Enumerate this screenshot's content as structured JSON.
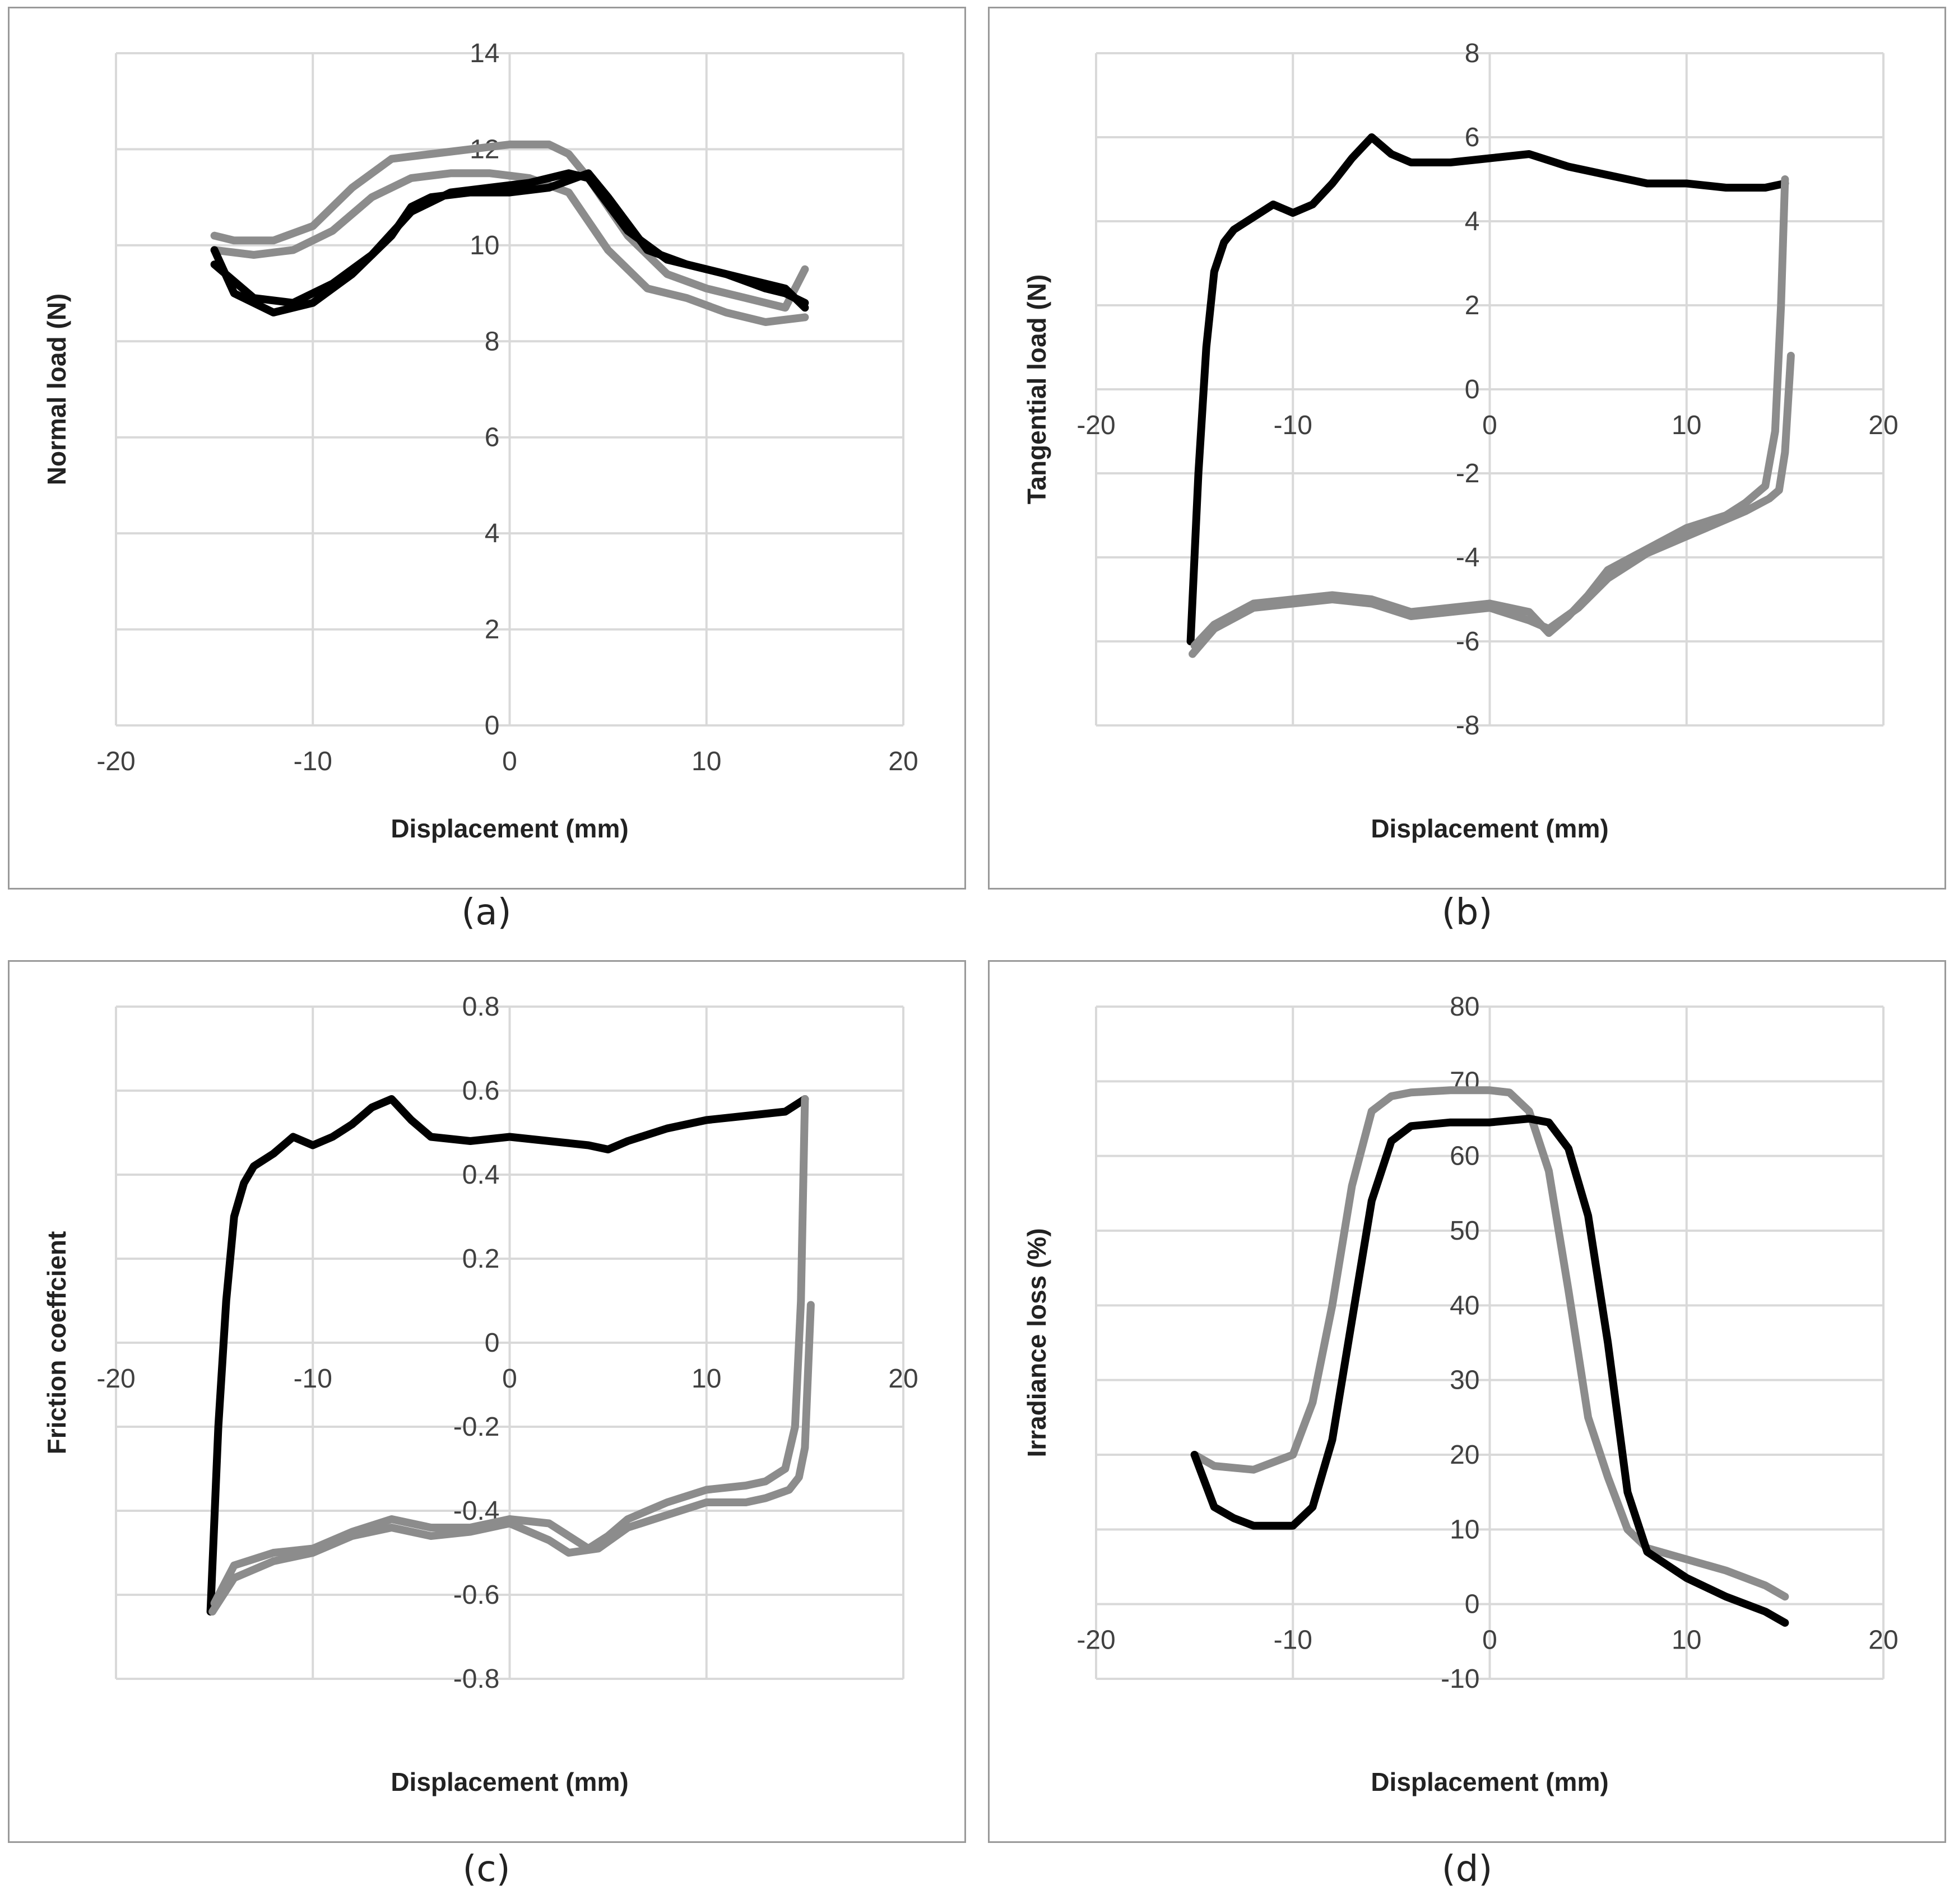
{
  "colors": {
    "grid": "#d9d9d9",
    "axis": "#d9d9d9",
    "black_series": "#000000",
    "gray_series": "#8c8c8c",
    "border": "#9a9a9a"
  },
  "chart_data": [
    {
      "id": "a",
      "caption": "(a)",
      "type": "line",
      "xlabel": "Displacement (mm)",
      "ylabel": "Normal load (N)",
      "xlim": [
        -20,
        20
      ],
      "ylim": [
        0,
        14
      ],
      "xticks": [
        -20,
        -10,
        0,
        10,
        20
      ],
      "yticks": [
        0,
        2,
        4,
        6,
        8,
        10,
        12,
        14
      ],
      "grid": true,
      "series": [
        {
          "name": "gray-1",
          "color": "gray",
          "x": [
            -15,
            -14,
            -12,
            -10,
            -8,
            -6,
            -4,
            -2,
            0,
            2,
            3,
            4,
            6,
            8,
            10,
            12,
            13,
            14,
            15
          ],
          "y": [
            10.2,
            10.1,
            10.1,
            10.4,
            11.2,
            11.8,
            11.9,
            12.0,
            12.1,
            12.1,
            11.9,
            11.4,
            10.2,
            9.4,
            9.1,
            8.9,
            8.8,
            8.7,
            9.5
          ]
        },
        {
          "name": "gray-2",
          "color": "gray",
          "x": [
            -15,
            -13,
            -11,
            -9,
            -7,
            -5,
            -3,
            -1,
            1,
            3,
            5,
            7,
            9,
            11,
            13,
            15
          ],
          "y": [
            9.9,
            9.8,
            9.9,
            10.3,
            11.0,
            11.4,
            11.5,
            11.5,
            11.4,
            11.1,
            9.9,
            9.1,
            8.9,
            8.6,
            8.4,
            8.5
          ]
        },
        {
          "name": "black-1",
          "color": "black",
          "x": [
            -15,
            -14,
            -12,
            -10,
            -8,
            -6,
            -5,
            -4,
            -2,
            0,
            2,
            4,
            5,
            7,
            9,
            11,
            13,
            14,
            15
          ],
          "y": [
            9.9,
            9.0,
            8.6,
            8.8,
            9.4,
            10.2,
            10.8,
            11.0,
            11.1,
            11.1,
            11.2,
            11.5,
            11.0,
            9.9,
            9.6,
            9.4,
            9.1,
            9.0,
            8.8
          ]
        },
        {
          "name": "black-2",
          "color": "black",
          "x": [
            -15,
            -13,
            -11,
            -9,
            -7,
            -5,
            -3,
            -1,
            1,
            3,
            4,
            6,
            8,
            10,
            12,
            14,
            15
          ],
          "y": [
            9.6,
            8.9,
            8.8,
            9.2,
            9.8,
            10.7,
            11.1,
            11.2,
            11.3,
            11.5,
            11.4,
            10.3,
            9.7,
            9.5,
            9.3,
            9.1,
            8.7
          ]
        }
      ]
    },
    {
      "id": "b",
      "caption": "(b)",
      "type": "line",
      "xlabel": "Displacement (mm)",
      "ylabel": "Tangential load (N)",
      "xlim": [
        -20,
        20
      ],
      "ylim": [
        -8,
        8
      ],
      "xticks": [
        -20,
        -10,
        0,
        10,
        20
      ],
      "yticks": [
        -8,
        -6,
        -4,
        -2,
        0,
        2,
        4,
        6,
        8
      ],
      "grid": true,
      "series": [
        {
          "name": "black-forward",
          "color": "black",
          "x": [
            -15.2,
            -14.8,
            -14.4,
            -14,
            -13.5,
            -13,
            -12,
            -11,
            -10,
            -9,
            -8,
            -7,
            -6,
            -5,
            -4,
            -2,
            0,
            2,
            4,
            6,
            8,
            10,
            12,
            14,
            15
          ],
          "y": [
            -6.0,
            -2.0,
            1.0,
            2.8,
            3.5,
            3.8,
            4.1,
            4.4,
            4.2,
            4.4,
            4.9,
            5.5,
            6.0,
            5.6,
            5.4,
            5.4,
            5.5,
            5.6,
            5.3,
            5.1,
            4.9,
            4.9,
            4.8,
            4.8,
            4.9
          ]
        },
        {
          "name": "gray-return-1",
          "color": "gray",
          "x": [
            15,
            14.8,
            14.5,
            14,
            13,
            12,
            10,
            8,
            6,
            5,
            4,
            3,
            2,
            0,
            -2,
            -4,
            -6,
            -8,
            -10,
            -12,
            -14,
            -15
          ],
          "y": [
            5.0,
            2.0,
            -1.0,
            -2.3,
            -2.7,
            -3.0,
            -3.3,
            -3.8,
            -4.3,
            -4.9,
            -5.4,
            -5.8,
            -5.3,
            -5.1,
            -5.2,
            -5.3,
            -5.0,
            -4.9,
            -5.0,
            -5.1,
            -5.6,
            -6.1
          ]
        },
        {
          "name": "gray-return-2",
          "color": "gray",
          "x": [
            15.3,
            15.0,
            14.7,
            14.2,
            13,
            12,
            10,
            8,
            6,
            4.5,
            3,
            2,
            0,
            -2,
            -4,
            -6,
            -8,
            -10,
            -12,
            -14,
            -15.1
          ],
          "y": [
            0.8,
            -1.5,
            -2.4,
            -2.6,
            -2.9,
            -3.1,
            -3.5,
            -3.9,
            -4.5,
            -5.2,
            -5.7,
            -5.5,
            -5.2,
            -5.3,
            -5.4,
            -5.1,
            -5.0,
            -5.1,
            -5.2,
            -5.7,
            -6.3
          ]
        }
      ]
    },
    {
      "id": "c",
      "caption": "(c)",
      "type": "line",
      "xlabel": "Displacement (mm)",
      "ylabel": "Friction coeffcient",
      "xlim": [
        -20,
        20
      ],
      "ylim": [
        -0.8,
        0.8
      ],
      "xticks": [
        -20,
        -10,
        0,
        10,
        20
      ],
      "yticks": [
        -0.8,
        -0.6,
        -0.4,
        -0.2,
        0,
        0.2,
        0.4,
        0.6,
        0.8
      ],
      "grid": true,
      "series": [
        {
          "name": "black-forward",
          "color": "black",
          "x": [
            -15.2,
            -14.8,
            -14.4,
            -14,
            -13.5,
            -13,
            -12,
            -11,
            -10,
            -9,
            -8,
            -7,
            -6,
            -5,
            -4,
            -2,
            0,
            2,
            4,
            5,
            6,
            8,
            10,
            12,
            14,
            15
          ],
          "y": [
            -0.64,
            -0.2,
            0.1,
            0.3,
            0.38,
            0.42,
            0.45,
            0.49,
            0.47,
            0.49,
            0.52,
            0.56,
            0.58,
            0.53,
            0.49,
            0.48,
            0.49,
            0.48,
            0.47,
            0.46,
            0.48,
            0.51,
            0.53,
            0.54,
            0.55,
            0.58
          ]
        },
        {
          "name": "gray-return-1",
          "color": "gray",
          "x": [
            15,
            14.8,
            14.5,
            14,
            13,
            12,
            10,
            8,
            6,
            5,
            4,
            3,
            2,
            0,
            -2,
            -4,
            -6,
            -8,
            -10,
            -12,
            -14,
            -15
          ],
          "y": [
            0.58,
            0.1,
            -0.2,
            -0.3,
            -0.33,
            -0.34,
            -0.35,
            -0.38,
            -0.42,
            -0.46,
            -0.49,
            -0.46,
            -0.43,
            -0.42,
            -0.44,
            -0.44,
            -0.42,
            -0.45,
            -0.49,
            -0.5,
            -0.53,
            -0.62
          ]
        },
        {
          "name": "gray-return-2",
          "color": "gray",
          "x": [
            15.3,
            15.0,
            14.7,
            14.2,
            13,
            12,
            10,
            8,
            6,
            4.5,
            3,
            2,
            0,
            -2,
            -4,
            -6,
            -8,
            -10,
            -12,
            -14,
            -15.1
          ],
          "y": [
            0.09,
            -0.25,
            -0.32,
            -0.35,
            -0.37,
            -0.38,
            -0.38,
            -0.41,
            -0.44,
            -0.49,
            -0.5,
            -0.47,
            -0.43,
            -0.45,
            -0.46,
            -0.44,
            -0.46,
            -0.5,
            -0.52,
            -0.56,
            -0.64
          ]
        }
      ]
    },
    {
      "id": "d",
      "caption": "(d)",
      "type": "line",
      "xlabel": "Displacement (mm)",
      "ylabel": "Irradiance loss (%)",
      "xlim": [
        -20,
        20
      ],
      "ylim": [
        -10,
        80
      ],
      "xticks": [
        -20,
        -10,
        0,
        10,
        20
      ],
      "yticks": [
        -10,
        0,
        10,
        20,
        30,
        40,
        50,
        60,
        70,
        80
      ],
      "grid": true,
      "series": [
        {
          "name": "gray",
          "color": "gray",
          "x": [
            -15,
            -14,
            -12,
            -10,
            -9,
            -8,
            -7,
            -6,
            -5,
            -4,
            -2,
            0,
            1,
            2,
            3,
            4,
            5,
            6,
            7,
            8,
            10,
            12,
            14,
            15
          ],
          "y": [
            20,
            18.5,
            18,
            20,
            27,
            40,
            56,
            66,
            68,
            68.5,
            68.8,
            68.8,
            68.5,
            66,
            58,
            42,
            25,
            17,
            10,
            7.5,
            6,
            4.5,
            2.5,
            1
          ]
        },
        {
          "name": "black",
          "color": "black",
          "x": [
            -15,
            -14,
            -13,
            -12,
            -10,
            -9,
            -8,
            -7,
            -6,
            -5,
            -4,
            -2,
            0,
            2,
            3,
            4,
            5,
            6,
            7,
            8,
            10,
            12,
            14,
            15
          ],
          "y": [
            20,
            13,
            11.5,
            10.5,
            10.5,
            13,
            22,
            38,
            54,
            62,
            64,
            64.5,
            64.5,
            65,
            64.5,
            61,
            52,
            35,
            15,
            7,
            3.5,
            1,
            -1,
            -2.5
          ]
        }
      ]
    }
  ]
}
